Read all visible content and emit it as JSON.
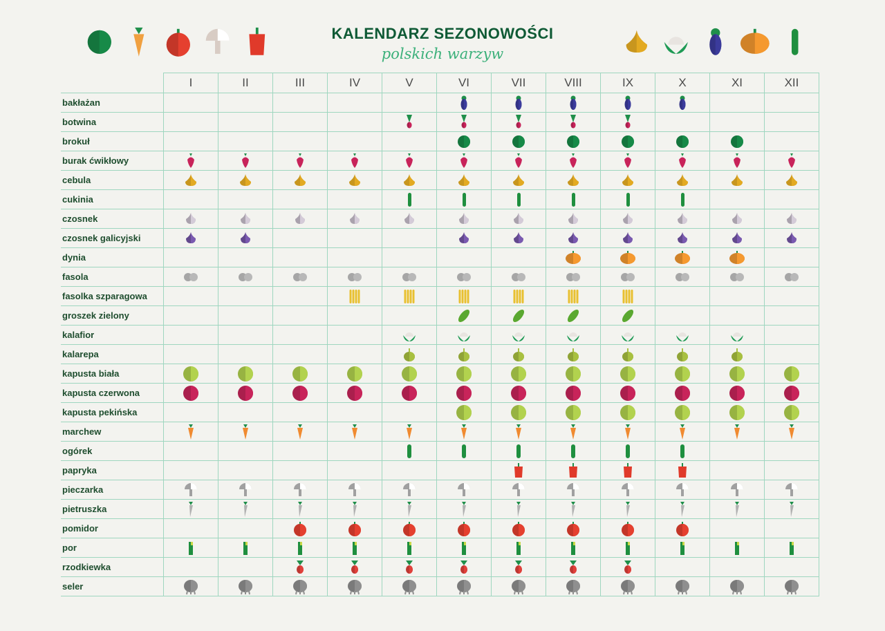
{
  "title": "KALENDARZ SEZONOWOŚCI",
  "subtitle": "polskich warzyw",
  "header_icons_left": [
    "broccoli-icon",
    "carrot-icon",
    "tomato-icon",
    "mushroom-icon",
    "pepper-icon"
  ],
  "header_icons_right": [
    "onion-icon",
    "cauliflower-icon",
    "eggplant-icon",
    "pumpkin-icon",
    "zucchini-icon"
  ],
  "colors": {
    "grid": "#9ed6bf",
    "title": "#0f5a35",
    "subtitle": "#3bb07a",
    "label": "#1e4d2e"
  },
  "chart_data": {
    "type": "table",
    "title": "KALENDARZ SEZONOWOŚCI",
    "subtitle": "polskich warzyw",
    "months": [
      "I",
      "II",
      "III",
      "IV",
      "V",
      "VI",
      "VII",
      "VIII",
      "IX",
      "X",
      "XI",
      "XII"
    ],
    "rows": [
      {
        "name": "bakłażan",
        "icon": "eggplant",
        "color": "#3b3b9c",
        "months": [
          "VI",
          "VII",
          "VIII",
          "IX",
          "X"
        ]
      },
      {
        "name": "botwina",
        "icon": "beet-greens",
        "color": "#c8235a",
        "months": [
          "V",
          "VI",
          "VII",
          "VIII",
          "IX"
        ]
      },
      {
        "name": "brokuł",
        "icon": "broccoli",
        "color": "#178a48",
        "months": [
          "VI",
          "VII",
          "VIII",
          "IX",
          "X",
          "XI"
        ]
      },
      {
        "name": "burak ćwikłowy",
        "icon": "beet",
        "color": "#c8235a",
        "months": [
          "I",
          "II",
          "III",
          "IV",
          "V",
          "VI",
          "VII",
          "VIII",
          "IX",
          "X",
          "XI",
          "XII"
        ]
      },
      {
        "name": "cebula",
        "icon": "onion",
        "color": "#e3aa22",
        "months": [
          "I",
          "II",
          "III",
          "IV",
          "V",
          "VI",
          "VII",
          "VIII",
          "IX",
          "X",
          "XI",
          "XII"
        ]
      },
      {
        "name": "cukinia",
        "icon": "zucchini",
        "color": "#1f8f3f",
        "months": [
          "V",
          "VI",
          "VII",
          "VIII",
          "IX",
          "X"
        ]
      },
      {
        "name": "czosnek",
        "icon": "garlic",
        "color": "#d4cbd8",
        "months": [
          "I",
          "II",
          "III",
          "IV",
          "V",
          "VI",
          "VII",
          "VIII",
          "IX",
          "X",
          "XI",
          "XII"
        ]
      },
      {
        "name": "czosnek galicyjski",
        "icon": "garlic",
        "color": "#7a5ab0",
        "months": [
          "I",
          "II",
          "VI",
          "VII",
          "VIII",
          "IX",
          "X",
          "XI",
          "XII"
        ]
      },
      {
        "name": "dynia",
        "icon": "pumpkin",
        "color": "#f5992f",
        "months": [
          "VIII",
          "IX",
          "X",
          "XI"
        ]
      },
      {
        "name": "fasola",
        "icon": "bean",
        "color": "#b8b8b8",
        "months": [
          "I",
          "II",
          "III",
          "IV",
          "V",
          "VI",
          "VII",
          "VIII",
          "IX",
          "X",
          "XI",
          "XII"
        ]
      },
      {
        "name": "fasolka szparagowa",
        "icon": "green-beans",
        "color": "#e8c030",
        "months": [
          "IV",
          "V",
          "VI",
          "VII",
          "VIII",
          "IX"
        ]
      },
      {
        "name": "groszek zielony",
        "icon": "peas",
        "color": "#5aa830",
        "months": [
          "VI",
          "VII",
          "VIII",
          "IX"
        ]
      },
      {
        "name": "kalafior",
        "icon": "cauliflower",
        "color": "#1f9a55",
        "months": [
          "V",
          "VI",
          "VII",
          "VIII",
          "IX",
          "X",
          "XI"
        ]
      },
      {
        "name": "kalarepa",
        "icon": "kohlrabi",
        "color": "#a8c040",
        "months": [
          "V",
          "VI",
          "VII",
          "VIII",
          "IX",
          "X",
          "XI"
        ]
      },
      {
        "name": "kapusta biała",
        "icon": "cabbage",
        "color": "#b2d24e",
        "months": [
          "I",
          "II",
          "III",
          "IV",
          "V",
          "VI",
          "VII",
          "VIII",
          "IX",
          "X",
          "XI",
          "XII"
        ]
      },
      {
        "name": "kapusta czerwona",
        "icon": "cabbage",
        "color": "#c8245a",
        "months": [
          "I",
          "II",
          "III",
          "IV",
          "V",
          "VI",
          "VII",
          "VIII",
          "IX",
          "X",
          "XI",
          "XII"
        ]
      },
      {
        "name": "kapusta pekińska",
        "icon": "cabbage",
        "color": "#b2d24e",
        "months": [
          "VI",
          "VII",
          "VIII",
          "IX",
          "X",
          "XI",
          "XII"
        ]
      },
      {
        "name": "marchew",
        "icon": "carrot",
        "color": "#f08a30",
        "months": [
          "I",
          "II",
          "III",
          "IV",
          "V",
          "VI",
          "VII",
          "VIII",
          "IX",
          "X",
          "XI",
          "XII"
        ]
      },
      {
        "name": "ogórek",
        "icon": "cucumber",
        "color": "#1f8f3f",
        "months": [
          "V",
          "VI",
          "VII",
          "VIII",
          "IX",
          "X"
        ]
      },
      {
        "name": "papryka",
        "icon": "pepper",
        "color": "#e03a2a",
        "months": [
          "VII",
          "VIII",
          "IX",
          "X"
        ]
      },
      {
        "name": "pieczarka",
        "icon": "mushroom",
        "color": "#a0a0a0",
        "months": [
          "I",
          "II",
          "III",
          "IV",
          "V",
          "VI",
          "VII",
          "VIII",
          "IX",
          "X",
          "XI",
          "XII"
        ]
      },
      {
        "name": "pietruszka",
        "icon": "parsley-root",
        "color": "#b0b0b0",
        "months": [
          "I",
          "II",
          "III",
          "IV",
          "V",
          "VI",
          "VII",
          "VIII",
          "IX",
          "X",
          "XI",
          "XII"
        ]
      },
      {
        "name": "pomidor",
        "icon": "tomato",
        "color": "#e5402f",
        "months": [
          "III",
          "IV",
          "V",
          "VI",
          "VII",
          "VIII",
          "IX",
          "X"
        ]
      },
      {
        "name": "por",
        "icon": "leek",
        "color": "#1f8f3f",
        "months": [
          "I",
          "II",
          "III",
          "IV",
          "V",
          "VI",
          "VII",
          "VIII",
          "IX",
          "X",
          "XI",
          "XII"
        ]
      },
      {
        "name": "rzodkiewka",
        "icon": "radish",
        "color": "#e0403a",
        "months": [
          "III",
          "IV",
          "V",
          "VI",
          "VII",
          "VIII",
          "IX"
        ]
      },
      {
        "name": "seler",
        "icon": "celeriac",
        "color": "#8f8f8f",
        "months": [
          "I",
          "II",
          "III",
          "IV",
          "V",
          "VI",
          "VII",
          "VIII",
          "IX",
          "X",
          "XI",
          "XII"
        ]
      }
    ]
  }
}
